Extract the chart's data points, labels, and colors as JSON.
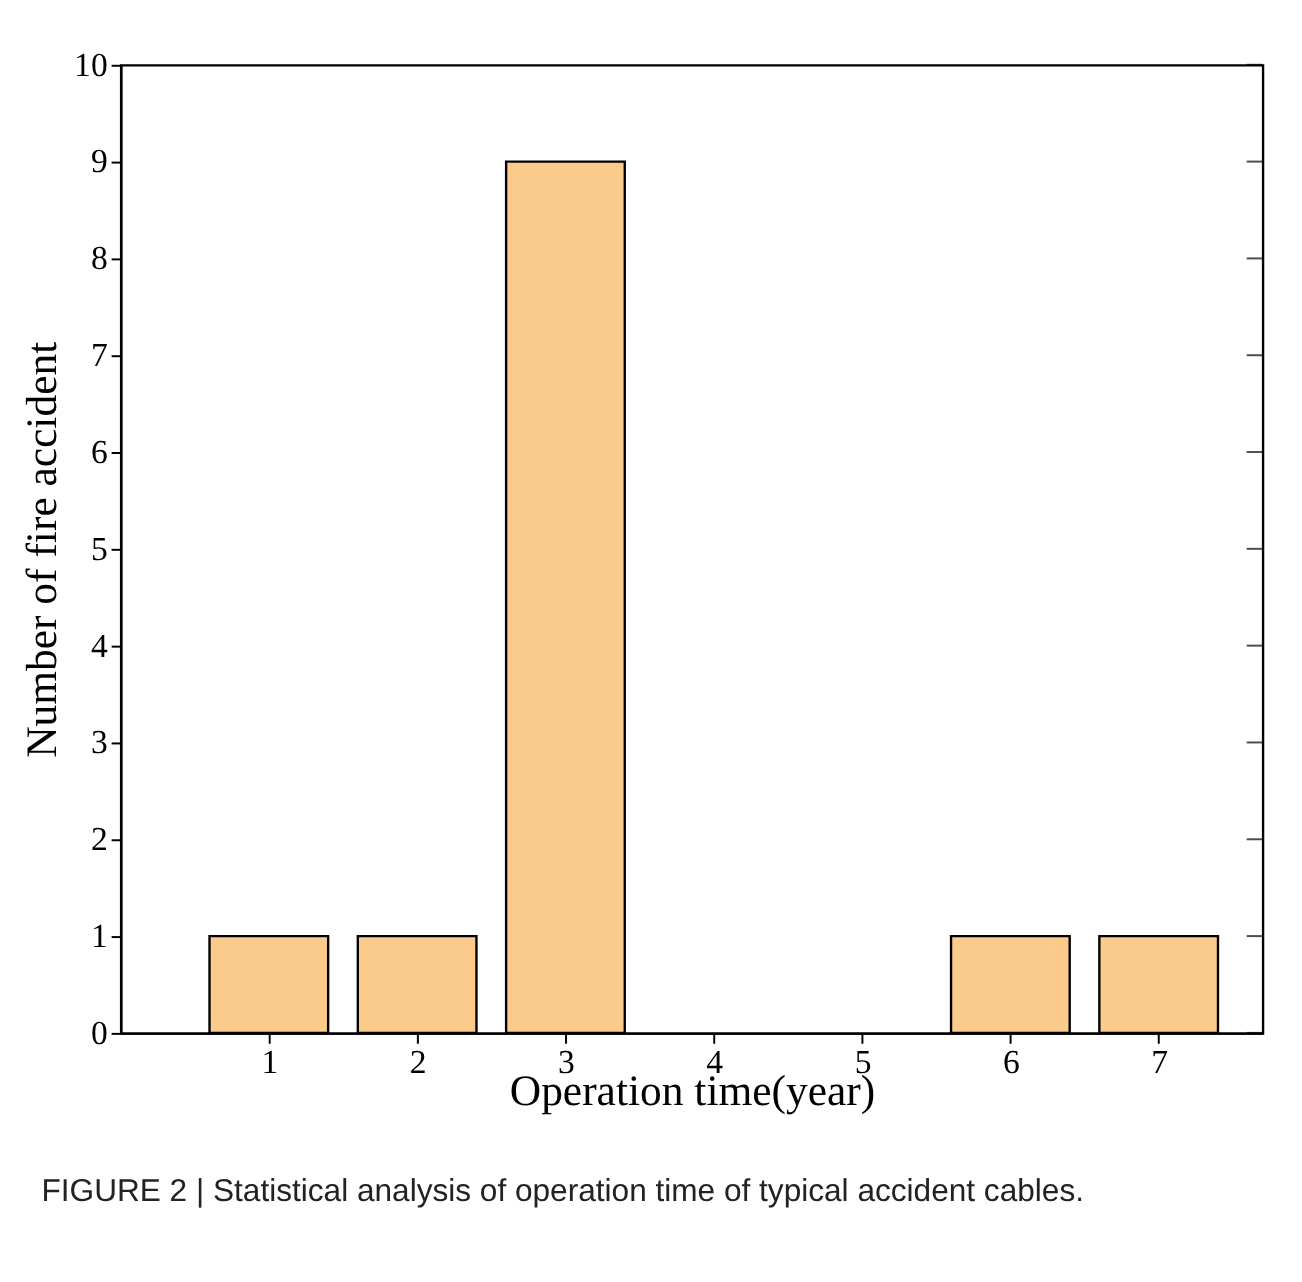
{
  "chart_data": {
    "type": "bar",
    "x": [
      1,
      2,
      3,
      4,
      5,
      6,
      7
    ],
    "values": [
      1,
      1,
      9,
      0,
      0,
      1,
      1
    ],
    "color": "#fbcb8b",
    "xlabel": "Operation time(year)",
    "ylabel": "Number of fire accident",
    "xlim": [
      0,
      7.7
    ],
    "xticks": [
      1,
      2,
      3,
      4,
      5,
      6,
      7
    ],
    "ylim": [
      0,
      10
    ],
    "yticks": [
      0,
      1,
      2,
      3,
      4,
      5,
      6,
      7,
      8,
      9,
      10
    ],
    "grid": false,
    "annotations": [
      "FIGURE 2 | Statistical analysis of operation time of typical accident cables."
    ]
  }
}
